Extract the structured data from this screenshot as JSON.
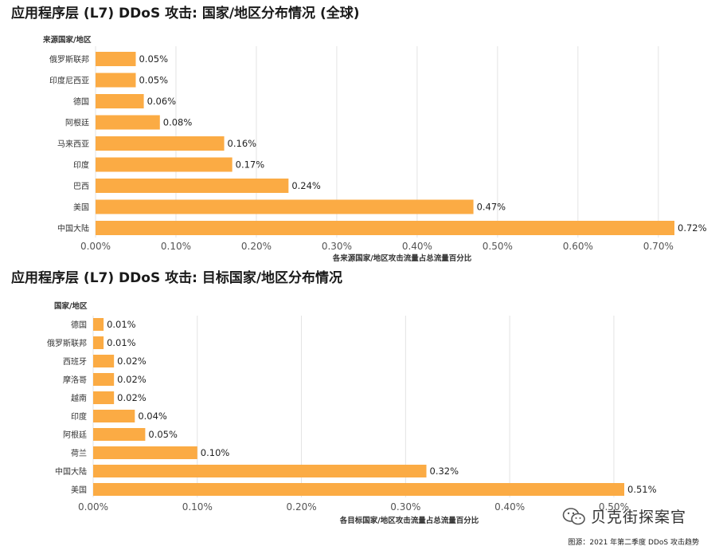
{
  "charts": [
    {
      "title": "应用程序层 (L7) DDoS 攻击: 国家/地区分布情况 (全球)"
    },
    {
      "title": "应用程序层 (L7) DDoS 攻击: 目标国家/地区分布情况"
    }
  ],
  "chart_data": [
    {
      "type": "bar",
      "orientation": "horizontal",
      "title": "应用程序层 (L7) DDoS 攻击: 国家/地区分布情况 (全球)",
      "ylabel": "来源国家/地区",
      "xlabel": "各来源国家/地区攻击流量占总流量百分比",
      "categories": [
        "俄罗斯联邦",
        "印度尼西亚",
        "德国",
        "阿根廷",
        "马来西亚",
        "印度",
        "巴西",
        "美国",
        "中国大陆"
      ],
      "values": [
        0.05,
        0.05,
        0.06,
        0.08,
        0.16,
        0.17,
        0.24,
        0.47,
        0.72
      ],
      "value_labels": [
        "0.05%",
        "0.05%",
        "0.06%",
        "0.08%",
        "0.16%",
        "0.17%",
        "0.24%",
        "0.47%",
        "0.72%"
      ],
      "xlim": [
        0,
        0.72
      ],
      "xticks": [
        0,
        0.1,
        0.2,
        0.3,
        0.4,
        0.5,
        0.6,
        0.7
      ],
      "xtick_labels": [
        "0.00%",
        "0.10%",
        "0.20%",
        "0.30%",
        "0.40%",
        "0.50%",
        "0.60%",
        "0.70%"
      ],
      "grid": true,
      "color": "#fbab44"
    },
    {
      "type": "bar",
      "orientation": "horizontal",
      "title": "应用程序层 (L7) DDoS 攻击: 目标国家/地区分布情况",
      "ylabel": "国家/地区",
      "xlabel": "各目标国家/地区攻击流量占总流量百分比",
      "categories": [
        "德国",
        "俄罗斯联邦",
        "西班牙",
        "摩洛哥",
        "越南",
        "印度",
        "阿根廷",
        "荷兰",
        "中国大陆",
        "美国"
      ],
      "values": [
        0.01,
        0.01,
        0.02,
        0.02,
        0.02,
        0.04,
        0.05,
        0.1,
        0.32,
        0.51
      ],
      "value_labels": [
        "0.01%",
        "0.01%",
        "0.02%",
        "0.02%",
        "0.02%",
        "0.04%",
        "0.05%",
        "0.10%",
        "0.32%",
        "0.51%"
      ],
      "xlim": [
        0,
        0.51
      ],
      "xticks": [
        0,
        0.1,
        0.2,
        0.3,
        0.4,
        0.5
      ],
      "xtick_labels": [
        "0.00%",
        "0.10%",
        "0.20%",
        "0.30%",
        "0.40%",
        "0.50%"
      ],
      "grid": true,
      "color": "#fbab44"
    }
  ],
  "watermark": {
    "icon": "wechat-icon",
    "text": "贝克街探案官"
  },
  "source": "图源：2021 年第二季度 DDoS 攻击趋势"
}
